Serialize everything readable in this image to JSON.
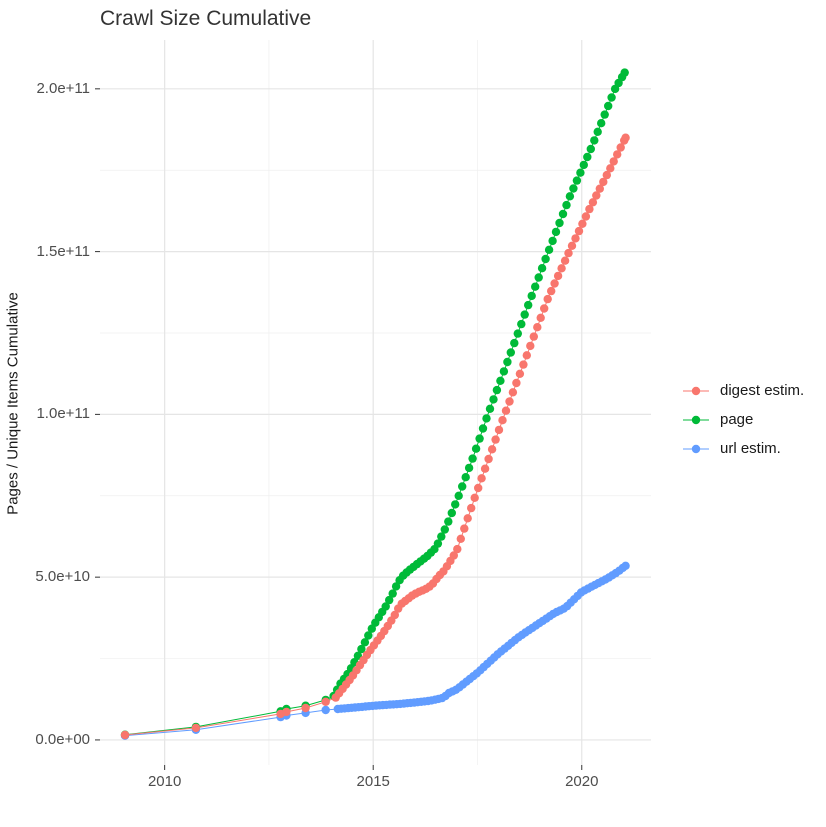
{
  "title": "Crawl Size Cumulative",
  "chart_data": {
    "type": "line",
    "title": "Crawl Size Cumulative",
    "xlabel": "",
    "ylabel": "Pages / Unique Items Cumulative",
    "grid": true,
    "legend_position": "right",
    "x_ticks": [
      2010,
      2015,
      2020
    ],
    "x_tick_labels": [
      "2010",
      "2015",
      "2020"
    ],
    "x_minor_ticks": [
      2012.5,
      2017.5
    ],
    "y_ticks": [
      0,
      50000000000.0,
      100000000000.0,
      150000000000.0,
      200000000000.0
    ],
    "y_tick_labels": [
      "0.0e+00",
      "5.0e+10",
      "1.0e+11",
      "1.5e+11",
      "2.0e+11"
    ],
    "y_minor_ticks": [
      25000000000.0,
      75000000000.0,
      125000000000.0,
      175000000000.0
    ],
    "xlim": [
      2008.45,
      2021.66
    ],
    "ylim": [
      -7700000000.0,
      215000000000.0
    ],
    "point_interval_years": 0.08333,
    "series": [
      {
        "name": "digest estim.",
        "color": "#F8766D",
        "dense_from": 2014.1,
        "anchors": [
          [
            2009.05,
            1500000000.0
          ],
          [
            2010.75,
            3700000000.0
          ],
          [
            2012.78,
            8000000000.0
          ],
          [
            2012.92,
            8600000000.0
          ],
          [
            2013.38,
            9800000000.0
          ],
          [
            2013.86,
            11700000000.0
          ],
          [
            2014.1,
            13000000000.0
          ],
          [
            2014.3,
            16200000000.0
          ],
          [
            2014.5,
            19500000000.0
          ],
          [
            2014.7,
            23300000000.0
          ],
          [
            2014.9,
            27000000000.0
          ],
          [
            2015.1,
            30500000000.0
          ],
          [
            2015.3,
            34000000000.0
          ],
          [
            2015.5,
            38000000000.0
          ],
          [
            2015.65,
            41500000000.0
          ],
          [
            2015.8,
            43000000000.0
          ],
          [
            2015.95,
            44500000000.0
          ],
          [
            2016.1,
            45500000000.0
          ],
          [
            2016.25,
            46300000000.0
          ],
          [
            2016.4,
            47500000000.0
          ],
          [
            2016.55,
            50000000000.0
          ],
          [
            2016.7,
            52000000000.0
          ],
          [
            2016.85,
            55000000000.0
          ],
          [
            2017.0,
            58000000000.0
          ],
          [
            2017.45,
            75000000000.0
          ],
          [
            2017.8,
            87500000000.0
          ],
          [
            2018.15,
            100000000000.0
          ],
          [
            2018.65,
            117000000000.0
          ],
          [
            2019.2,
            136000000000.0
          ],
          [
            2019.7,
            150000000000.0
          ],
          [
            2020.2,
            163500000000.0
          ],
          [
            2020.7,
            176000000000.0
          ],
          [
            2021.05,
            185000000000.0
          ]
        ]
      },
      {
        "name": "page",
        "color": "#00BA38",
        "dense_from": 2014.05,
        "anchors": [
          [
            2009.05,
            1600000000.0
          ],
          [
            2010.75,
            4000000000.0
          ],
          [
            2012.78,
            8800000000.0
          ],
          [
            2012.92,
            9500000000.0
          ],
          [
            2013.38,
            10500000000.0
          ],
          [
            2013.86,
            12300000000.0
          ],
          [
            2014.05,
            13500000000.0
          ],
          [
            2014.2,
            17000000000.0
          ],
          [
            2014.4,
            20500000000.0
          ],
          [
            2014.6,
            25000000000.0
          ],
          [
            2014.8,
            30000000000.0
          ],
          [
            2015.0,
            35000000000.0
          ],
          [
            2015.15,
            38000000000.0
          ],
          [
            2015.3,
            41000000000.0
          ],
          [
            2015.45,
            44500000000.0
          ],
          [
            2015.6,
            48500000000.0
          ],
          [
            2015.72,
            50500000000.0
          ],
          [
            2015.85,
            52000000000.0
          ],
          [
            2016.0,
            53500000000.0
          ],
          [
            2016.15,
            55000000000.0
          ],
          [
            2016.3,
            56500000000.0
          ],
          [
            2016.5,
            59000000000.0
          ],
          [
            2016.75,
            65500000000.0
          ],
          [
            2017.05,
            75000000000.0
          ],
          [
            2017.4,
            87000000000.0
          ],
          [
            2017.75,
            100000000000.0
          ],
          [
            2018.2,
            115500000000.0
          ],
          [
            2018.7,
            133000000000.0
          ],
          [
            2019.2,
            150000000000.0
          ],
          [
            2019.7,
            166500000000.0
          ],
          [
            2020.2,
            181000000000.0
          ],
          [
            2020.8,
            200000000000.0
          ],
          [
            2021.03,
            205000000000.0
          ]
        ]
      },
      {
        "name": "url estim.",
        "color": "#619CFF",
        "dense_from": 2014.15,
        "anchors": [
          [
            2009.05,
            1300000000.0
          ],
          [
            2010.75,
            3100000000.0
          ],
          [
            2012.78,
            7000000000.0
          ],
          [
            2012.92,
            7500000000.0
          ],
          [
            2013.38,
            8300000000.0
          ],
          [
            2013.86,
            9200000000.0
          ],
          [
            2014.15,
            9500000000.0
          ],
          [
            2014.6,
            10000000000.0
          ],
          [
            2015.1,
            10600000000.0
          ],
          [
            2015.6,
            11000000000.0
          ],
          [
            2016.0,
            11500000000.0
          ],
          [
            2016.35,
            12000000000.0
          ],
          [
            2016.6,
            12700000000.0
          ],
          [
            2016.7,
            13000000000.0
          ],
          [
            2016.78,
            14200000000.0
          ],
          [
            2017.0,
            15500000000.0
          ],
          [
            2017.5,
            20600000000.0
          ],
          [
            2018.0,
            26500000000.0
          ],
          [
            2018.5,
            31700000000.0
          ],
          [
            2019.0,
            36000000000.0
          ],
          [
            2019.35,
            39000000000.0
          ],
          [
            2019.6,
            40500000000.0
          ],
          [
            2020.0,
            45500000000.0
          ],
          [
            2020.3,
            47500000000.0
          ],
          [
            2020.6,
            49500000000.0
          ],
          [
            2020.85,
            51500000000.0
          ],
          [
            2021.05,
            53500000000.0
          ]
        ]
      }
    ]
  },
  "legend": {
    "items": [
      {
        "label": "digest estim.",
        "color": "#F8766D"
      },
      {
        "label": "page",
        "color": "#00BA38"
      },
      {
        "label": "url estim.",
        "color": "#619CFF"
      }
    ]
  },
  "style": {
    "grid_major_color": "#e5e5e5",
    "grid_minor_color": "#efefef",
    "tick_color": "#333333",
    "background": "#ffffff"
  }
}
